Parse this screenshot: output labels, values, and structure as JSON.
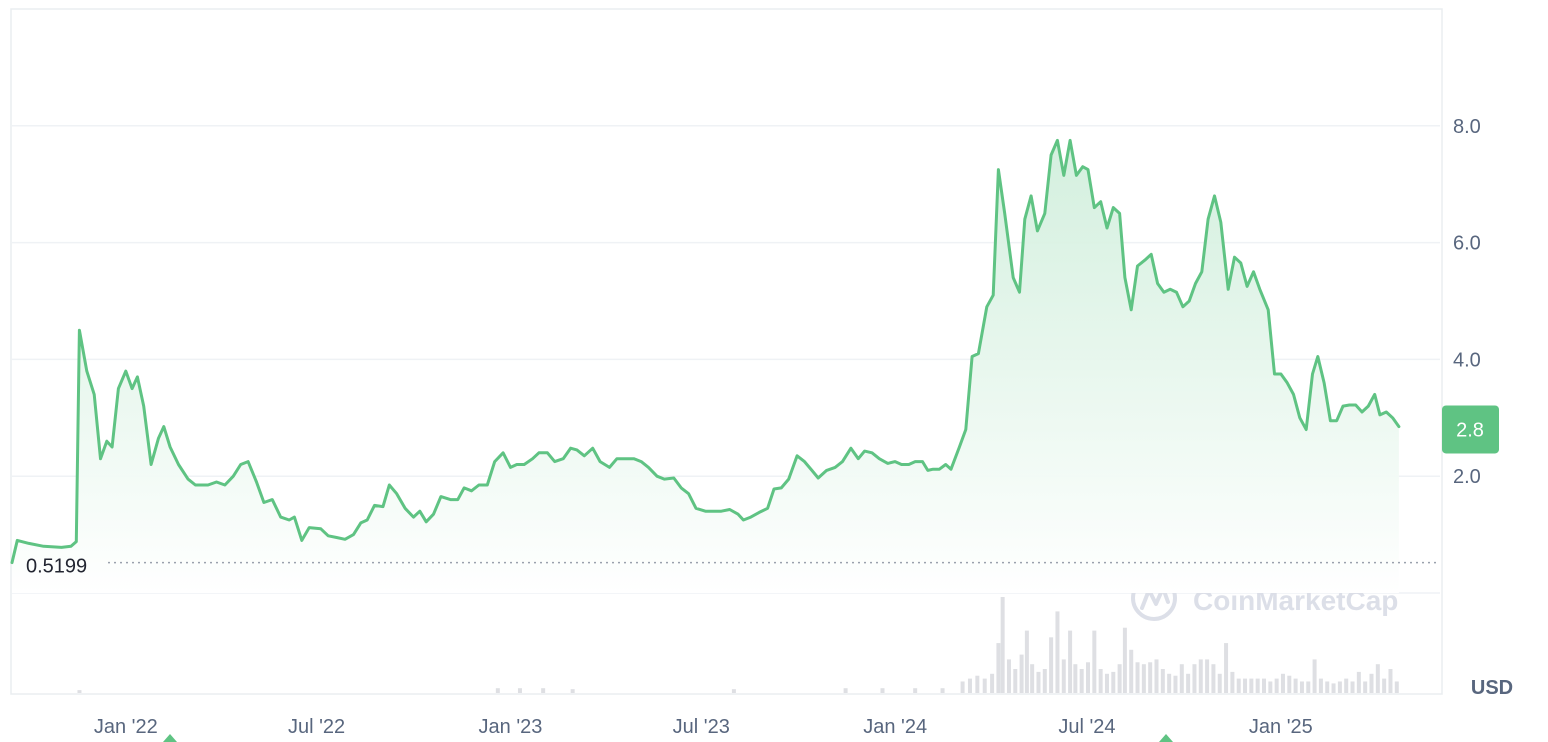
{
  "chart_data": {
    "type": "area",
    "title": "",
    "xlabel": "",
    "ylabel": "",
    "currency": "USD",
    "watermark": "CoinMarketCap",
    "ylim": [
      0,
      10
    ],
    "y_ticks": [
      2.0,
      4.0,
      6.0,
      8.0
    ],
    "y_tick_labels": [
      "2.0",
      "4.0",
      "6.0",
      "8.0"
    ],
    "x_ticks": [
      {
        "label": "Jan '22",
        "t": "2022-01-01"
      },
      {
        "label": "Jul '22",
        "t": "2022-07-01"
      },
      {
        "label": "Jan '23",
        "t": "2023-01-01"
      },
      {
        "label": "Jul '23",
        "t": "2023-07-01"
      },
      {
        "label": "Jan '24",
        "t": "2024-01-01"
      },
      {
        "label": "Jul '24",
        "t": "2024-07-01"
      },
      {
        "label": "Jan '25",
        "t": "2025-01-01"
      }
    ],
    "x_range": [
      "2021-09-15",
      "2025-06-01"
    ],
    "start_price": 0.5199,
    "start_price_label": "0.5199",
    "current_price": 2.8,
    "current_price_label": "2.8",
    "grid": true,
    "colors": {
      "line": "#5fc383",
      "fill_top": "#cfeedb",
      "fill_bottom": "#ffffff",
      "badge": "#5fc383",
      "volume": "#dedfe3",
      "grid": "#eff2f5",
      "axis_text": "#58667e"
    },
    "series": [
      {
        "values": [
          [
            "2021-09-15",
            0.52
          ],
          [
            "2021-09-20",
            0.9
          ],
          [
            "2021-10-01",
            0.85
          ],
          [
            "2021-10-15",
            0.8
          ],
          [
            "2021-11-01",
            0.78
          ],
          [
            "2021-11-10",
            0.8
          ],
          [
            "2021-11-15",
            0.88
          ],
          [
            "2021-11-18",
            4.5
          ],
          [
            "2021-11-25",
            3.8
          ],
          [
            "2021-12-02",
            3.4
          ],
          [
            "2021-12-08",
            2.3
          ],
          [
            "2021-12-14",
            2.6
          ],
          [
            "2021-12-19",
            2.5
          ],
          [
            "2021-12-25",
            3.5
          ],
          [
            "2022-01-01",
            3.8
          ],
          [
            "2022-01-07",
            3.5
          ],
          [
            "2022-01-12",
            3.7
          ],
          [
            "2022-01-18",
            3.2
          ],
          [
            "2022-01-25",
            2.2
          ],
          [
            "2022-02-01",
            2.65
          ],
          [
            "2022-02-06",
            2.85
          ],
          [
            "2022-02-12",
            2.5
          ],
          [
            "2022-02-20",
            2.2
          ],
          [
            "2022-03-01",
            1.95
          ],
          [
            "2022-03-08",
            1.85
          ],
          [
            "2022-03-20",
            1.85
          ],
          [
            "2022-03-28",
            1.9
          ],
          [
            "2022-04-05",
            1.85
          ],
          [
            "2022-04-13",
            2.0
          ],
          [
            "2022-04-20",
            2.2
          ],
          [
            "2022-04-27",
            2.25
          ],
          [
            "2022-05-05",
            1.9
          ],
          [
            "2022-05-12",
            1.55
          ],
          [
            "2022-05-20",
            1.6
          ],
          [
            "2022-05-28",
            1.3
          ],
          [
            "2022-06-05",
            1.25
          ],
          [
            "2022-06-10",
            1.3
          ],
          [
            "2022-06-17",
            0.9
          ],
          [
            "2022-06-24",
            1.12
          ],
          [
            "2022-07-05",
            1.1
          ],
          [
            "2022-07-12",
            0.98
          ],
          [
            "2022-07-20",
            0.95
          ],
          [
            "2022-07-28",
            0.92
          ],
          [
            "2022-08-05",
            1.0
          ],
          [
            "2022-08-12",
            1.2
          ],
          [
            "2022-08-18",
            1.25
          ],
          [
            "2022-08-25",
            1.5
          ],
          [
            "2022-09-02",
            1.48
          ],
          [
            "2022-09-08",
            1.85
          ],
          [
            "2022-09-15",
            1.7
          ],
          [
            "2022-09-23",
            1.45
          ],
          [
            "2022-10-01",
            1.3
          ],
          [
            "2022-10-07",
            1.4
          ],
          [
            "2022-10-13",
            1.22
          ],
          [
            "2022-10-20",
            1.35
          ],
          [
            "2022-10-27",
            1.65
          ],
          [
            "2022-11-05",
            1.6
          ],
          [
            "2022-11-12",
            1.6
          ],
          [
            "2022-11-18",
            1.8
          ],
          [
            "2022-11-25",
            1.75
          ],
          [
            "2022-12-02",
            1.85
          ],
          [
            "2022-12-10",
            1.85
          ],
          [
            "2022-12-17",
            2.25
          ],
          [
            "2022-12-25",
            2.4
          ],
          [
            "2023-01-01",
            2.15
          ],
          [
            "2023-01-07",
            2.2
          ],
          [
            "2023-01-14",
            2.2
          ],
          [
            "2023-01-22",
            2.3
          ],
          [
            "2023-01-28",
            2.4
          ],
          [
            "2023-02-05",
            2.4
          ],
          [
            "2023-02-12",
            2.25
          ],
          [
            "2023-02-20",
            2.3
          ],
          [
            "2023-02-27",
            2.48
          ],
          [
            "2023-03-05",
            2.45
          ],
          [
            "2023-03-12",
            2.35
          ],
          [
            "2023-03-20",
            2.48
          ],
          [
            "2023-03-27",
            2.25
          ],
          [
            "2023-04-05",
            2.15
          ],
          [
            "2023-04-12",
            2.3
          ],
          [
            "2023-04-20",
            2.3
          ],
          [
            "2023-04-28",
            2.3
          ],
          [
            "2023-05-05",
            2.25
          ],
          [
            "2023-05-12",
            2.15
          ],
          [
            "2023-05-20",
            2.0
          ],
          [
            "2023-05-27",
            1.95
          ],
          [
            "2023-06-05",
            1.97
          ],
          [
            "2023-06-12",
            1.8
          ],
          [
            "2023-06-19",
            1.7
          ],
          [
            "2023-06-26",
            1.45
          ],
          [
            "2023-07-05",
            1.4
          ],
          [
            "2023-07-12",
            1.4
          ],
          [
            "2023-07-20",
            1.4
          ],
          [
            "2023-07-28",
            1.43
          ],
          [
            "2023-08-05",
            1.35
          ],
          [
            "2023-08-10",
            1.25
          ],
          [
            "2023-08-17",
            1.3
          ],
          [
            "2023-08-25",
            1.38
          ],
          [
            "2023-09-02",
            1.45
          ],
          [
            "2023-09-08",
            1.78
          ],
          [
            "2023-09-15",
            1.8
          ],
          [
            "2023-09-22",
            1.95
          ],
          [
            "2023-09-30",
            2.35
          ],
          [
            "2023-10-07",
            2.25
          ],
          [
            "2023-10-14",
            2.1
          ],
          [
            "2023-10-20",
            1.97
          ],
          [
            "2023-10-28",
            2.1
          ],
          [
            "2023-11-05",
            2.15
          ],
          [
            "2023-11-12",
            2.25
          ],
          [
            "2023-11-20",
            2.48
          ],
          [
            "2023-11-27",
            2.3
          ],
          [
            "2023-12-03",
            2.43
          ],
          [
            "2023-12-10",
            2.4
          ],
          [
            "2023-12-17",
            2.3
          ],
          [
            "2023-12-25",
            2.22
          ],
          [
            "2024-01-01",
            2.25
          ],
          [
            "2024-01-07",
            2.2
          ],
          [
            "2024-01-14",
            2.2
          ],
          [
            "2024-01-20",
            2.25
          ],
          [
            "2024-01-27",
            2.25
          ],
          [
            "2024-02-01",
            2.1
          ],
          [
            "2024-02-06",
            2.12
          ],
          [
            "2024-02-12",
            2.12
          ],
          [
            "2024-02-18",
            2.2
          ],
          [
            "2024-02-23",
            2.12
          ],
          [
            "2024-03-02",
            2.5
          ],
          [
            "2024-03-08",
            2.8
          ],
          [
            "2024-03-14",
            4.05
          ],
          [
            "2024-03-20",
            4.1
          ],
          [
            "2024-03-28",
            4.9
          ],
          [
            "2024-04-03",
            5.1
          ],
          [
            "2024-04-08",
            7.25
          ],
          [
            "2024-04-14",
            6.5
          ],
          [
            "2024-04-22",
            5.4
          ],
          [
            "2024-04-28",
            5.15
          ],
          [
            "2024-05-03",
            6.4
          ],
          [
            "2024-05-09",
            6.8
          ],
          [
            "2024-05-15",
            6.2
          ],
          [
            "2024-05-22",
            6.5
          ],
          [
            "2024-05-28",
            7.5
          ],
          [
            "2024-06-03",
            7.75
          ],
          [
            "2024-06-09",
            7.15
          ],
          [
            "2024-06-15",
            7.75
          ],
          [
            "2024-06-21",
            7.15
          ],
          [
            "2024-06-27",
            7.3
          ],
          [
            "2024-07-02",
            7.25
          ],
          [
            "2024-07-08",
            6.6
          ],
          [
            "2024-07-14",
            6.7
          ],
          [
            "2024-07-20",
            6.25
          ],
          [
            "2024-07-26",
            6.6
          ],
          [
            "2024-08-01",
            6.5
          ],
          [
            "2024-08-06",
            5.4
          ],
          [
            "2024-08-12",
            4.85
          ],
          [
            "2024-08-18",
            5.6
          ],
          [
            "2024-08-25",
            5.7
          ],
          [
            "2024-08-31",
            5.8
          ],
          [
            "2024-09-06",
            5.3
          ],
          [
            "2024-09-12",
            5.15
          ],
          [
            "2024-09-18",
            5.2
          ],
          [
            "2024-09-24",
            5.15
          ],
          [
            "2024-09-30",
            4.9
          ],
          [
            "2024-10-06",
            5.0
          ],
          [
            "2024-10-12",
            5.3
          ],
          [
            "2024-10-18",
            5.5
          ],
          [
            "2024-10-24",
            6.4
          ],
          [
            "2024-10-30",
            6.8
          ],
          [
            "2024-11-05",
            6.35
          ],
          [
            "2024-11-12",
            5.2
          ],
          [
            "2024-11-18",
            5.75
          ],
          [
            "2024-11-24",
            5.65
          ],
          [
            "2024-11-30",
            5.25
          ],
          [
            "2024-12-06",
            5.5
          ],
          [
            "2024-12-12",
            5.2
          ],
          [
            "2024-12-20",
            4.85
          ],
          [
            "2024-12-26",
            3.75
          ],
          [
            "2025-01-01",
            3.75
          ],
          [
            "2025-01-07",
            3.6
          ],
          [
            "2025-01-13",
            3.4
          ],
          [
            "2025-01-19",
            3.0
          ],
          [
            "2025-01-25",
            2.8
          ],
          [
            "2025-01-31",
            3.75
          ],
          [
            "2025-02-05",
            4.05
          ],
          [
            "2025-02-11",
            3.6
          ],
          [
            "2025-02-17",
            2.95
          ],
          [
            "2025-02-23",
            2.95
          ],
          [
            "2025-03-01",
            3.2
          ],
          [
            "2025-03-07",
            3.22
          ],
          [
            "2025-03-13",
            3.22
          ],
          [
            "2025-03-19",
            3.1
          ],
          [
            "2025-03-25",
            3.2
          ],
          [
            "2025-03-31",
            3.4
          ],
          [
            "2025-04-05",
            3.05
          ],
          [
            "2025-04-11",
            3.1
          ],
          [
            "2025-04-17",
            3.0
          ],
          [
            "2025-04-23",
            2.85
          ]
        ]
      }
    ],
    "volume": [
      [
        "2021-11-18",
        0.03
      ],
      [
        "2022-12-20",
        0.05
      ],
      [
        "2023-01-10",
        0.05
      ],
      [
        "2023-02-01",
        0.05
      ],
      [
        "2023-03-01",
        0.04
      ],
      [
        "2023-08-01",
        0.04
      ],
      [
        "2023-11-15",
        0.05
      ],
      [
        "2023-12-20",
        0.05
      ],
      [
        "2024-01-20",
        0.05
      ],
      [
        "2024-02-15",
        0.05
      ],
      [
        "2024-03-05",
        0.12
      ],
      [
        "2024-03-12",
        0.15
      ],
      [
        "2024-03-19",
        0.18
      ],
      [
        "2024-03-26",
        0.15
      ],
      [
        "2024-04-02",
        0.2
      ],
      [
        "2024-04-08",
        0.52
      ],
      [
        "2024-04-12",
        1.0
      ],
      [
        "2024-04-18",
        0.35
      ],
      [
        "2024-04-24",
        0.25
      ],
      [
        "2024-04-30",
        0.4
      ],
      [
        "2024-05-05",
        0.65
      ],
      [
        "2024-05-10",
        0.3
      ],
      [
        "2024-05-16",
        0.22
      ],
      [
        "2024-05-22",
        0.25
      ],
      [
        "2024-05-28",
        0.58
      ],
      [
        "2024-06-03",
        0.85
      ],
      [
        "2024-06-09",
        0.35
      ],
      [
        "2024-06-15",
        0.65
      ],
      [
        "2024-06-20",
        0.3
      ],
      [
        "2024-06-26",
        0.25
      ],
      [
        "2024-07-02",
        0.32
      ],
      [
        "2024-07-08",
        0.65
      ],
      [
        "2024-07-14",
        0.25
      ],
      [
        "2024-07-20",
        0.2
      ],
      [
        "2024-07-26",
        0.22
      ],
      [
        "2024-08-01",
        0.3
      ],
      [
        "2024-08-06",
        0.68
      ],
      [
        "2024-08-12",
        0.45
      ],
      [
        "2024-08-18",
        0.32
      ],
      [
        "2024-08-24",
        0.3
      ],
      [
        "2024-08-30",
        0.32
      ],
      [
        "2024-09-05",
        0.35
      ],
      [
        "2024-09-11",
        0.25
      ],
      [
        "2024-09-17",
        0.2
      ],
      [
        "2024-09-23",
        0.18
      ],
      [
        "2024-09-29",
        0.3
      ],
      [
        "2024-10-05",
        0.2
      ],
      [
        "2024-10-11",
        0.3
      ],
      [
        "2024-10-17",
        0.35
      ],
      [
        "2024-10-23",
        0.35
      ],
      [
        "2024-10-29",
        0.3
      ],
      [
        "2024-11-04",
        0.2
      ],
      [
        "2024-11-10",
        0.52
      ],
      [
        "2024-11-16",
        0.22
      ],
      [
        "2024-11-22",
        0.15
      ],
      [
        "2024-11-28",
        0.15
      ],
      [
        "2024-12-04",
        0.15
      ],
      [
        "2024-12-10",
        0.15
      ],
      [
        "2024-12-16",
        0.15
      ],
      [
        "2024-12-22",
        0.12
      ],
      [
        "2024-12-28",
        0.15
      ],
      [
        "2025-01-03",
        0.2
      ],
      [
        "2025-01-09",
        0.18
      ],
      [
        "2025-01-15",
        0.15
      ],
      [
        "2025-01-21",
        0.12
      ],
      [
        "2025-01-27",
        0.12
      ],
      [
        "2025-02-02",
        0.35
      ],
      [
        "2025-02-08",
        0.15
      ],
      [
        "2025-02-14",
        0.12
      ],
      [
        "2025-02-20",
        0.1
      ],
      [
        "2025-02-26",
        0.12
      ],
      [
        "2025-03-04",
        0.15
      ],
      [
        "2025-03-10",
        0.12
      ],
      [
        "2025-03-16",
        0.22
      ],
      [
        "2025-03-22",
        0.12
      ],
      [
        "2025-03-28",
        0.2
      ],
      [
        "2025-04-03",
        0.3
      ],
      [
        "2025-04-09",
        0.15
      ],
      [
        "2025-04-15",
        0.25
      ],
      [
        "2025-04-21",
        0.12
      ]
    ]
  }
}
